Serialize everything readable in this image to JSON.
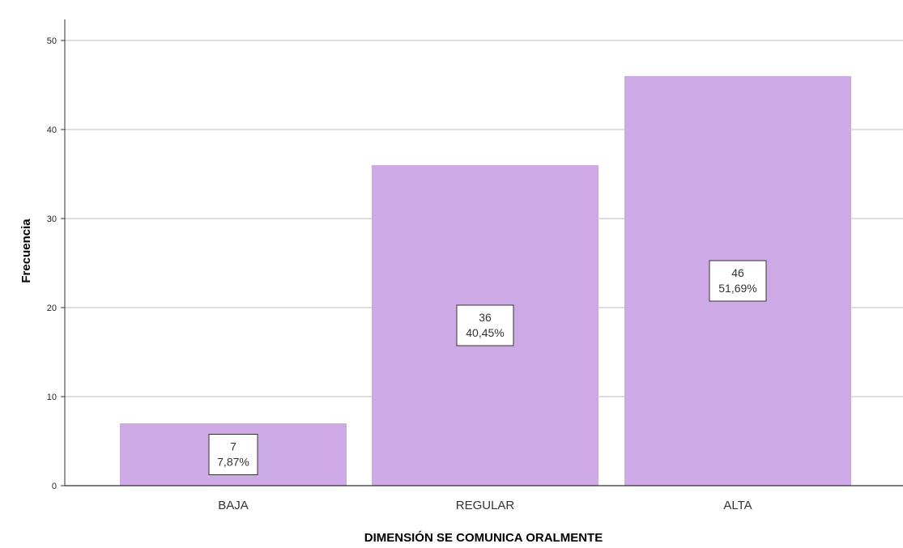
{
  "chart_data": {
    "type": "bar",
    "categories": [
      "BAJA",
      "REGULAR",
      "ALTA"
    ],
    "values": [
      7,
      36,
      46
    ],
    "percent_labels": [
      "7,87%",
      "40,45%",
      "51,69%"
    ],
    "title": "",
    "xlabel": "DIMENSIÓN SE COMUNICA ORALMENTE",
    "ylabel": "Frecuencia",
    "ylim": [
      0,
      50
    ],
    "yticks": [
      0,
      10,
      20,
      30,
      40,
      50
    ],
    "grid": true,
    "colors": {
      "bar": "#CDA9E5",
      "grid": "#BDBDBD",
      "axis": "#333333"
    }
  }
}
